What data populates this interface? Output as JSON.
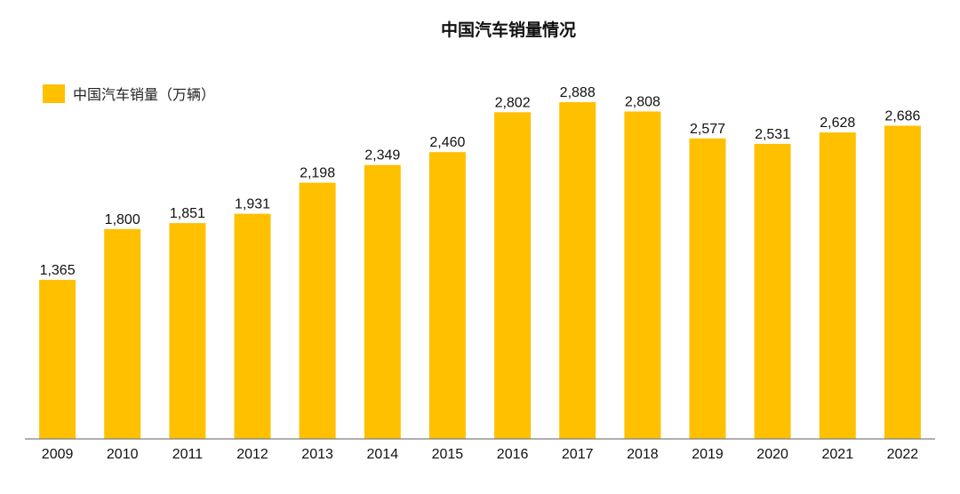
{
  "colors": {
    "bar": "#FFC000",
    "axis": "#7F7F7F"
  },
  "chart_data": {
    "type": "bar",
    "title": "中国汽车销量情况",
    "xlabel": "",
    "ylabel": "",
    "categories": [
      "2009",
      "2010",
      "2011",
      "2012",
      "2013",
      "2014",
      "2015",
      "2016",
      "2017",
      "2018",
      "2019",
      "2020",
      "2021",
      "2022"
    ],
    "series": [
      {
        "name": "中国汽车销量（万辆）",
        "values": [
          1365,
          1800,
          1851,
          1931,
          2198,
          2349,
          2460,
          2802,
          2888,
          2808,
          2577,
          2531,
          2628,
          2686
        ]
      }
    ],
    "data_labels": [
      "1,365",
      "1,800",
      "1,851",
      "1,931",
      "2,198",
      "2,349",
      "2,460",
      "2,802",
      "2,888",
      "2,808",
      "2,577",
      "2,531",
      "2,628",
      "2,686"
    ],
    "ylim": [
      0,
      2888
    ],
    "grid": false,
    "legend_position": "top-left"
  }
}
